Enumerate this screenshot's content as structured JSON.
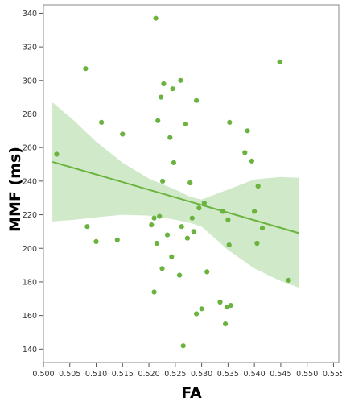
{
  "chart_data": {
    "type": "scatter",
    "title": "",
    "xlabel": "FA",
    "ylabel": "MMF (ms)",
    "xlim": [
      0.5,
      0.556
    ],
    "ylim": [
      132,
      345
    ],
    "xticks": [
      0.5,
      0.505,
      0.51,
      0.515,
      0.52,
      0.525,
      0.53,
      0.535,
      0.54,
      0.545,
      0.55,
      0.555
    ],
    "xtick_labels": [
      "0.500",
      "0.505",
      "0.510",
      "0.515",
      "0.520",
      "0.525",
      "0.530",
      "0.535",
      "0.540",
      "0.545",
      "0.550",
      "0.555"
    ],
    "yticks": [
      140,
      160,
      180,
      200,
      220,
      240,
      260,
      280,
      300,
      320,
      340
    ],
    "ytick_labels": [
      "140",
      "160",
      "180",
      "200",
      "220",
      "240",
      "260",
      "280",
      "300",
      "320",
      "340"
    ],
    "grid": false,
    "colors": {
      "points": "#6ab33e",
      "line": "#6ab33e",
      "band": "#c8e6bf",
      "frame": "#888888"
    },
    "points": [
      {
        "x": 0.5025,
        "y": 256
      },
      {
        "x": 0.508,
        "y": 307
      },
      {
        "x": 0.5083,
        "y": 213
      },
      {
        "x": 0.51,
        "y": 204
      },
      {
        "x": 0.511,
        "y": 275
      },
      {
        "x": 0.514,
        "y": 205
      },
      {
        "x": 0.515,
        "y": 268
      },
      {
        "x": 0.5205,
        "y": 214
      },
      {
        "x": 0.521,
        "y": 218
      },
      {
        "x": 0.521,
        "y": 174
      },
      {
        "x": 0.5213,
        "y": 337
      },
      {
        "x": 0.5215,
        "y": 203
      },
      {
        "x": 0.5217,
        "y": 276
      },
      {
        "x": 0.522,
        "y": 219
      },
      {
        "x": 0.5223,
        "y": 290
      },
      {
        "x": 0.5225,
        "y": 188
      },
      {
        "x": 0.5226,
        "y": 240
      },
      {
        "x": 0.5228,
        "y": 298
      },
      {
        "x": 0.5235,
        "y": 208
      },
      {
        "x": 0.524,
        "y": 266
      },
      {
        "x": 0.5243,
        "y": 195
      },
      {
        "x": 0.5245,
        "y": 295
      },
      {
        "x": 0.5247,
        "y": 251
      },
      {
        "x": 0.5258,
        "y": 184
      },
      {
        "x": 0.526,
        "y": 300
      },
      {
        "x": 0.5262,
        "y": 213
      },
      {
        "x": 0.5265,
        "y": 142
      },
      {
        "x": 0.527,
        "y": 274
      },
      {
        "x": 0.5273,
        "y": 206
      },
      {
        "x": 0.5278,
        "y": 239
      },
      {
        "x": 0.5282,
        "y": 218
      },
      {
        "x": 0.5285,
        "y": 210
      },
      {
        "x": 0.529,
        "y": 288
      },
      {
        "x": 0.529,
        "y": 161
      },
      {
        "x": 0.5295,
        "y": 224
      },
      {
        "x": 0.53,
        "y": 164
      },
      {
        "x": 0.5305,
        "y": 227
      },
      {
        "x": 0.531,
        "y": 186
      },
      {
        "x": 0.5335,
        "y": 168
      },
      {
        "x": 0.534,
        "y": 222
      },
      {
        "x": 0.5345,
        "y": 155
      },
      {
        "x": 0.5348,
        "y": 165
      },
      {
        "x": 0.535,
        "y": 217
      },
      {
        "x": 0.5352,
        "y": 202
      },
      {
        "x": 0.5353,
        "y": 275
      },
      {
        "x": 0.5355,
        "y": 166
      },
      {
        "x": 0.5382,
        "y": 257
      },
      {
        "x": 0.5387,
        "y": 270
      },
      {
        "x": 0.5395,
        "y": 252
      },
      {
        "x": 0.54,
        "y": 222
      },
      {
        "x": 0.5405,
        "y": 203
      },
      {
        "x": 0.5407,
        "y": 237
      },
      {
        "x": 0.5415,
        "y": 212
      },
      {
        "x": 0.5448,
        "y": 311
      },
      {
        "x": 0.5465,
        "y": 181
      }
    ],
    "fit_line": {
      "x": [
        0.5017,
        0.5485
      ],
      "y": [
        251.5,
        209.0
      ]
    },
    "confidence_band": {
      "x": [
        0.5017,
        0.506,
        0.51,
        0.515,
        0.52,
        0.525,
        0.528,
        0.53,
        0.535,
        0.54,
        0.545,
        0.5485
      ],
      "upper": [
        287.0,
        275.5,
        263.5,
        251.0,
        241.5,
        235.0,
        230.5,
        229.0,
        235.0,
        241.0,
        242.5,
        242.0
      ],
      "lower": [
        216.0,
        217.0,
        218.5,
        220.0,
        219.5,
        217.0,
        215.0,
        213.0,
        199.0,
        188.0,
        180.5,
        176.5
      ]
    }
  }
}
